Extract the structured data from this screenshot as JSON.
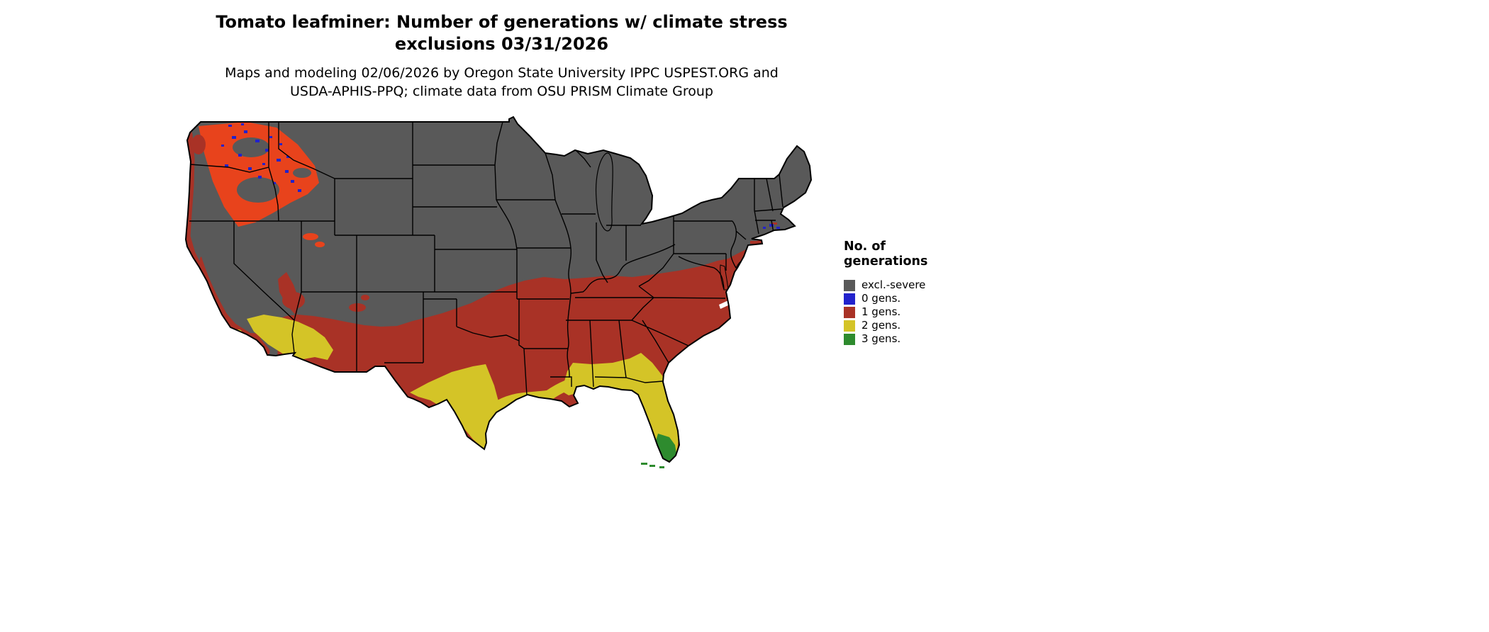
{
  "header": {
    "title_line1": "Tomato leafminer: Number of generations w/ climate stress",
    "title_line2": "exclusions 03/31/2026",
    "subtitle_line1": "Maps and modeling 02/06/2026 by Oregon State University IPPC USPEST.ORG and",
    "subtitle_line2": "USDA-APHIS-PPQ; climate data from OSU PRISM Climate Group"
  },
  "legend": {
    "title_line1": "No. of",
    "title_line2": "generations",
    "items": [
      {
        "label": "excl.-severe",
        "color": "#595959"
      },
      {
        "label": "0 gens.",
        "color": "#2222cc"
      },
      {
        "label": "1 gens.",
        "color": "#a93226"
      },
      {
        "label": "2 gens.",
        "color": "#d4c427"
      },
      {
        "label": "3 gens.",
        "color": "#2e8b2e"
      }
    ]
  },
  "map": {
    "region_name": "contiguous-united-states",
    "colors": {
      "base_excluded": "#595959",
      "zero_gens": "#2222cc",
      "one_gen": "#a93226",
      "one_gen_bright": "#e8431c",
      "two_gens": "#d4c427",
      "three_gens": "#2e8b2e",
      "border": "#000000",
      "water": "#ffffff"
    }
  }
}
